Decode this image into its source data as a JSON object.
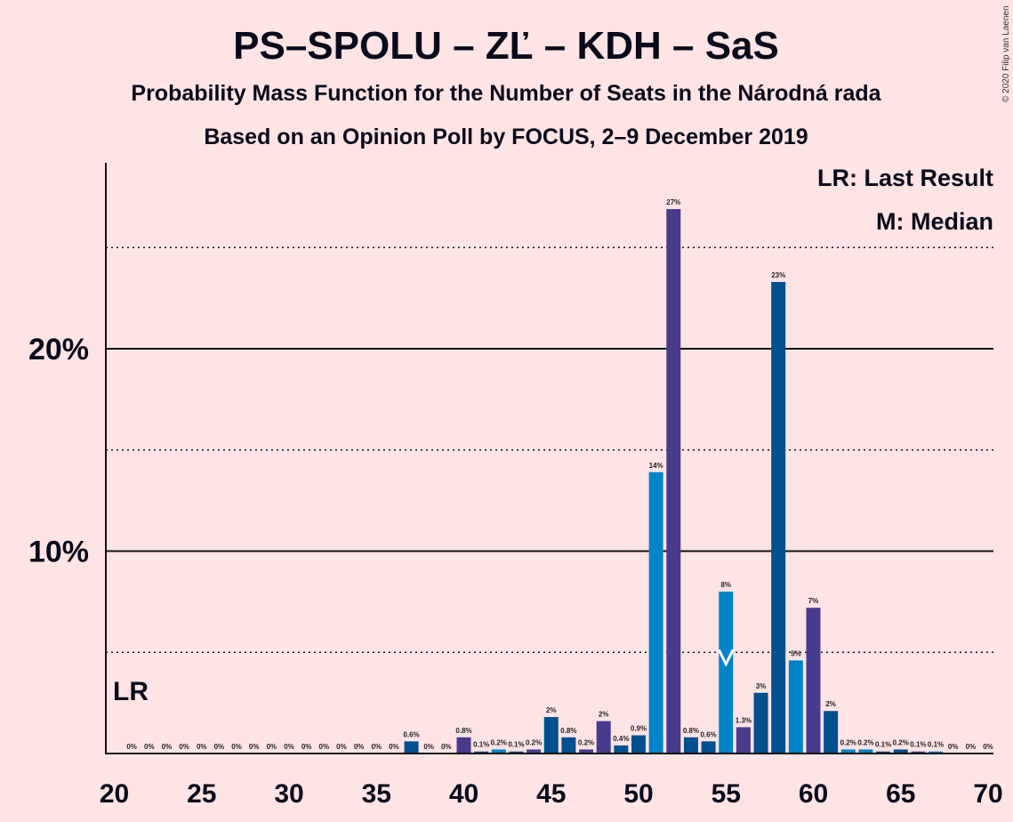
{
  "copyright": "© 2020 Filip van Laenen",
  "chart_data": {
    "type": "bar",
    "title": "PS–SPOLU – ZĽ – KDH – SaS",
    "subtitle1": "Probability Mass Function for the Number of Seats in the Národná rada",
    "subtitle2": "Based on an Opinion Poll by FOCUS, 2–9 December 2019",
    "legend": [
      "LR: Last Result",
      "M: Median"
    ],
    "legend_position": "top-right",
    "last_result_label": "LR",
    "last_result_seat": 20,
    "median_seat": 55,
    "median_marker_label": "M",
    "xlim": [
      20,
      70
    ],
    "ylim": [
      0,
      29
    ],
    "x_ticks": [
      "20",
      "25",
      "30",
      "35",
      "40",
      "45",
      "50",
      "55",
      "60",
      "65",
      "70"
    ],
    "y_ticks": [
      {
        "value": 10,
        "label": "10%"
      },
      {
        "value": 20,
        "label": "20%"
      }
    ],
    "dotted_gridlines": [
      5,
      15,
      25
    ],
    "solid_gridlines": [
      10,
      20
    ],
    "series_colors": [
      "#0084C8",
      "#483A8D",
      "#005090"
    ],
    "bars": [
      {
        "seat": 21,
        "value": 0,
        "label": "0%",
        "color": "#0084C8"
      },
      {
        "seat": 22,
        "value": 0,
        "label": "0%",
        "color": "#483A8D"
      },
      {
        "seat": 23,
        "value": 0,
        "label": "0%",
        "color": "#005090"
      },
      {
        "seat": 24,
        "value": 0,
        "label": "0%",
        "color": "#0084C8"
      },
      {
        "seat": 25,
        "value": 0,
        "label": "0%",
        "color": "#483A8D"
      },
      {
        "seat": 26,
        "value": 0,
        "label": "0%",
        "color": "#005090"
      },
      {
        "seat": 27,
        "value": 0,
        "label": "0%",
        "color": "#0084C8"
      },
      {
        "seat": 28,
        "value": 0,
        "label": "0%",
        "color": "#483A8D"
      },
      {
        "seat": 29,
        "value": 0,
        "label": "0%",
        "color": "#005090"
      },
      {
        "seat": 30,
        "value": 0,
        "label": "0%",
        "color": "#0084C8"
      },
      {
        "seat": 31,
        "value": 0,
        "label": "0%",
        "color": "#483A8D"
      },
      {
        "seat": 32,
        "value": 0,
        "label": "0%",
        "color": "#005090"
      },
      {
        "seat": 33,
        "value": 0,
        "label": "0%",
        "color": "#0084C8"
      },
      {
        "seat": 34,
        "value": 0,
        "label": "0%",
        "color": "#483A8D"
      },
      {
        "seat": 35,
        "value": 0,
        "label": "0%",
        "color": "#005090"
      },
      {
        "seat": 36,
        "value": 0,
        "label": "0%",
        "color": "#0084C8"
      },
      {
        "seat": 37,
        "value": 0.6,
        "label": "0.6%",
        "color": "#005090"
      },
      {
        "seat": 38,
        "value": 0,
        "label": "0%",
        "color": "#0084C8"
      },
      {
        "seat": 39,
        "value": 0,
        "label": "0%",
        "color": "#005090"
      },
      {
        "seat": 40,
        "value": 0.8,
        "label": "0.8%",
        "color": "#483A8D"
      },
      {
        "seat": 41,
        "value": 0.1,
        "label": "0.1%",
        "color": "#005090"
      },
      {
        "seat": 42,
        "value": 0.2,
        "label": "0.2%",
        "color": "#0084C8"
      },
      {
        "seat": 43,
        "value": 0.1,
        "label": "0.1%",
        "color": "#005090"
      },
      {
        "seat": 44,
        "value": 0.2,
        "label": "0.2%",
        "color": "#483A8D"
      },
      {
        "seat": 45,
        "value": 1.8,
        "label": "2%",
        "color": "#005090"
      },
      {
        "seat": 46,
        "value": 0.8,
        "label": "0.8%",
        "color": "#005090"
      },
      {
        "seat": 47,
        "value": 0.2,
        "label": "0.2%",
        "color": "#483A8D"
      },
      {
        "seat": 48,
        "value": 1.6,
        "label": "2%",
        "color": "#483A8D"
      },
      {
        "seat": 49,
        "value": 0.4,
        "label": "0.4%",
        "color": "#005090"
      },
      {
        "seat": 50,
        "value": 0.9,
        "label": "0.9%",
        "color": "#005090"
      },
      {
        "seat": 51,
        "value": 13.9,
        "label": "14%",
        "color": "#0084C8"
      },
      {
        "seat": 52,
        "value": 26.9,
        "label": "27%",
        "color": "#483A8D"
      },
      {
        "seat": 53,
        "value": 0.8,
        "label": "0.8%",
        "color": "#005090"
      },
      {
        "seat": 54,
        "value": 0.6,
        "label": "0.6%",
        "color": "#005090"
      },
      {
        "seat": 55,
        "value": 8.0,
        "label": "8%",
        "color": "#0084C8"
      },
      {
        "seat": 56,
        "value": 1.3,
        "label": "1.3%",
        "color": "#483A8D"
      },
      {
        "seat": 57,
        "value": 3.0,
        "label": "3%",
        "color": "#005090"
      },
      {
        "seat": 58,
        "value": 23.3,
        "label": "23%",
        "color": "#005090"
      },
      {
        "seat": 59,
        "value": 4.6,
        "label": "5%",
        "color": "#0084C8"
      },
      {
        "seat": 60,
        "value": 7.2,
        "label": "7%",
        "color": "#483A8D"
      },
      {
        "seat": 61,
        "value": 2.1,
        "label": "2%",
        "color": "#005090"
      },
      {
        "seat": 62,
        "value": 0.2,
        "label": "0.2%",
        "color": "#0084C8"
      },
      {
        "seat": 63,
        "value": 0.2,
        "label": "0.2%",
        "color": "#0084C8"
      },
      {
        "seat": 64,
        "value": 0.1,
        "label": "0.1%",
        "color": "#005090"
      },
      {
        "seat": 65,
        "value": 0.2,
        "label": "0.2%",
        "color": "#005090"
      },
      {
        "seat": 66,
        "value": 0.1,
        "label": "0.1%",
        "color": "#483A8D"
      },
      {
        "seat": 67,
        "value": 0.1,
        "label": "0.1%",
        "color": "#0084C8"
      },
      {
        "seat": 68,
        "value": 0,
        "label": "0%",
        "color": "#005090"
      },
      {
        "seat": 69,
        "value": 0,
        "label": "0%",
        "color": "#005090"
      },
      {
        "seat": 70,
        "value": 0,
        "label": "0%",
        "color": "#005090"
      }
    ]
  }
}
